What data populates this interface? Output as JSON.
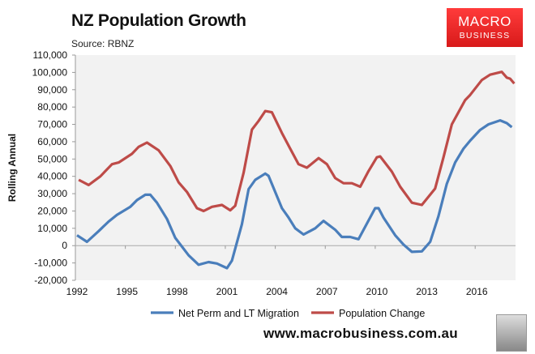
{
  "header": {
    "title": "NZ Population Growth",
    "source": "Source: RBNZ"
  },
  "logo": {
    "line1": "MACRO",
    "line2": "BUSINESS"
  },
  "footer": {
    "url": "www.macrobusiness.com.au"
  },
  "chart_data": {
    "type": "line",
    "title": "NZ Population Growth",
    "xlabel": "",
    "ylabel": "Rolling Annual",
    "ylim": [
      -20000,
      110000
    ],
    "xlim": [
      1992,
      2018.25
    ],
    "yticks": [
      -20000,
      -10000,
      0,
      10000,
      20000,
      30000,
      40000,
      50000,
      60000,
      70000,
      80000,
      90000,
      100000,
      110000
    ],
    "ytick_labels": [
      "-20,000",
      "-10,000",
      "0",
      "10,000",
      "20,000",
      "30,000",
      "40,000",
      "50,000",
      "60,000",
      "70,000",
      "80,000",
      "90,000",
      "100,000",
      "110,000"
    ],
    "xticks": [
      1992,
      1995,
      1998,
      2001,
      2004,
      2007,
      2010,
      2013,
      2016
    ],
    "xtick_labels": [
      "1992",
      "1995",
      "1998",
      "2001",
      "2004",
      "2007",
      "2010",
      "2013",
      "2016"
    ],
    "grid": false,
    "legend_position": "bottom",
    "series": [
      {
        "name": "Net Perm and LT Migration",
        "color": "#4a7ebb",
        "x": [
          1992,
          1992.6,
          1993.3,
          1993.9,
          1994.4,
          1995.2,
          1995.6,
          1996.1,
          1996.4,
          1996.8,
          1997.4,
          1997.9,
          1998.7,
          1999.3,
          1999.9,
          2000.4,
          2001.0,
          2001.3,
          2001.9,
          2002.3,
          2002.7,
          2003.3,
          2003.5,
          2004.3,
          2004.7,
          2005.1,
          2005.6,
          2006.3,
          2006.8,
          2007.5,
          2007.9,
          2008.4,
          2008.9,
          2009.9,
          2010.1,
          2010.4,
          2011.1,
          2011.6,
          2012.1,
          2012.7,
          2013.2,
          2013.7,
          2014.2,
          2014.7,
          2015.2,
          2015.6,
          2016.2,
          2016.7,
          2017.4,
          2017.8,
          2018.1
        ],
        "values": [
          6000,
          2200,
          8400,
          13900,
          17800,
          22400,
          26300,
          29400,
          29400,
          24800,
          15400,
          4500,
          -5600,
          -11000,
          -9500,
          -10300,
          -13000,
          -8700,
          12300,
          32600,
          38000,
          41600,
          40300,
          21600,
          16200,
          10000,
          6400,
          10000,
          14300,
          9200,
          5000,
          5000,
          3700,
          21600,
          21600,
          16200,
          6000,
          600,
          -3600,
          -3300,
          2200,
          17000,
          35700,
          48000,
          56000,
          60600,
          66800,
          70000,
          72300,
          70700,
          68400
        ]
      },
      {
        "name": "Population Change",
        "color": "#be4b48",
        "x": [
          1992.1,
          1992.7,
          1993.4,
          1994.1,
          1994.5,
          1995.3,
          1995.7,
          1996.2,
          1996.9,
          1997.6,
          1998.1,
          1998.6,
          1999.2,
          1999.6,
          2000.1,
          2000.7,
          2001.2,
          2001.5,
          2002.0,
          2002.5,
          2002.9,
          2003.3,
          2003.7,
          2004.3,
          2004.8,
          2005.3,
          2005.8,
          2006.5,
          2007.0,
          2007.5,
          2008.0,
          2008.5,
          2009.0,
          2009.5,
          2010.0,
          2010.2,
          2010.9,
          2011.4,
          2012.1,
          2012.7,
          2013.5,
          2014.0,
          2014.5,
          2015.3,
          2015.6,
          2016.3,
          2016.8,
          2017.5,
          2017.8,
          2018.0,
          2018.25
        ],
        "values": [
          38000,
          35000,
          40000,
          47000,
          48000,
          53000,
          57000,
          59500,
          55000,
          46000,
          36500,
          31000,
          21600,
          20000,
          22400,
          23500,
          20400,
          23000,
          42000,
          67000,
          72000,
          77700,
          77000,
          65000,
          56000,
          47000,
          45000,
          50500,
          47000,
          39000,
          36000,
          36000,
          34000,
          43000,
          51000,
          51500,
          42700,
          34000,
          24800,
          23500,
          33000,
          51000,
          70000,
          84000,
          87000,
          95600,
          98700,
          100300,
          97000,
          96400,
          93600
        ]
      }
    ]
  }
}
